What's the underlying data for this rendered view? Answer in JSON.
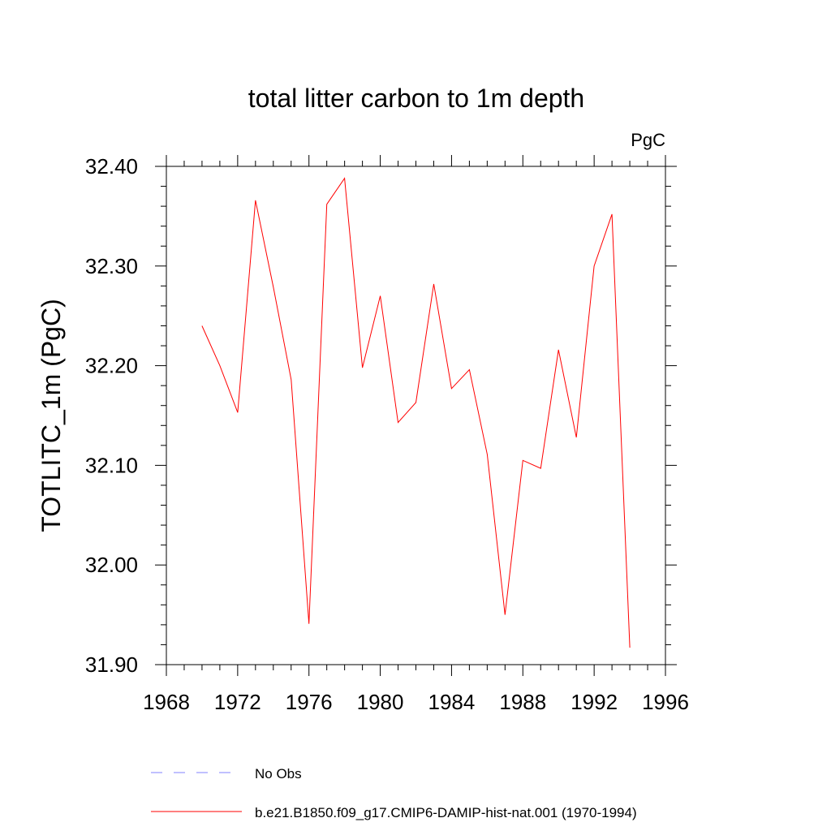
{
  "chart_data": {
    "type": "line",
    "title": "total litter carbon to 1m depth",
    "units": "PgC",
    "ylabel": "TOTLITC_1m  (PgC)",
    "xlabel": "",
    "xlim": [
      1968,
      1996
    ],
    "ylim": [
      31.9,
      32.4
    ],
    "xticks": [
      1968,
      1972,
      1976,
      1980,
      1984,
      1988,
      1992,
      1996
    ],
    "yticks": [
      "31.90",
      "32.00",
      "32.10",
      "32.20",
      "32.30",
      "32.40"
    ],
    "grid": false,
    "series": [
      {
        "name": "b.e21.B1850.f09_g17.CMIP6-DAMIP-hist-nat.001 (1970-1994)",
        "color": "#ff0000",
        "style": "solid",
        "x": [
          1970,
          1971,
          1972,
          1973,
          1974,
          1975,
          1976,
          1977,
          1978,
          1979,
          1980,
          1981,
          1982,
          1983,
          1984,
          1985,
          1986,
          1987,
          1988,
          1989,
          1990,
          1991,
          1992,
          1993,
          1994
        ],
        "values": [
          32.24,
          32.2,
          32.153,
          32.366,
          32.279,
          32.186,
          31.941,
          32.362,
          32.388,
          32.198,
          32.27,
          32.143,
          32.163,
          32.282,
          32.177,
          32.196,
          32.111,
          31.95,
          32.105,
          32.097,
          32.216,
          32.128,
          32.3,
          32.352,
          31.917
        ]
      }
    ],
    "legend": {
      "placement": "bottom",
      "entries": [
        {
          "label": "No Obs",
          "color": "#8080ff",
          "style": "dashed"
        },
        {
          "label": "b.e21.B1850.f09_g17.CMIP6-DAMIP-hist-nat.001 (1970-1994)",
          "color": "#ff0000",
          "style": "solid"
        }
      ]
    }
  }
}
